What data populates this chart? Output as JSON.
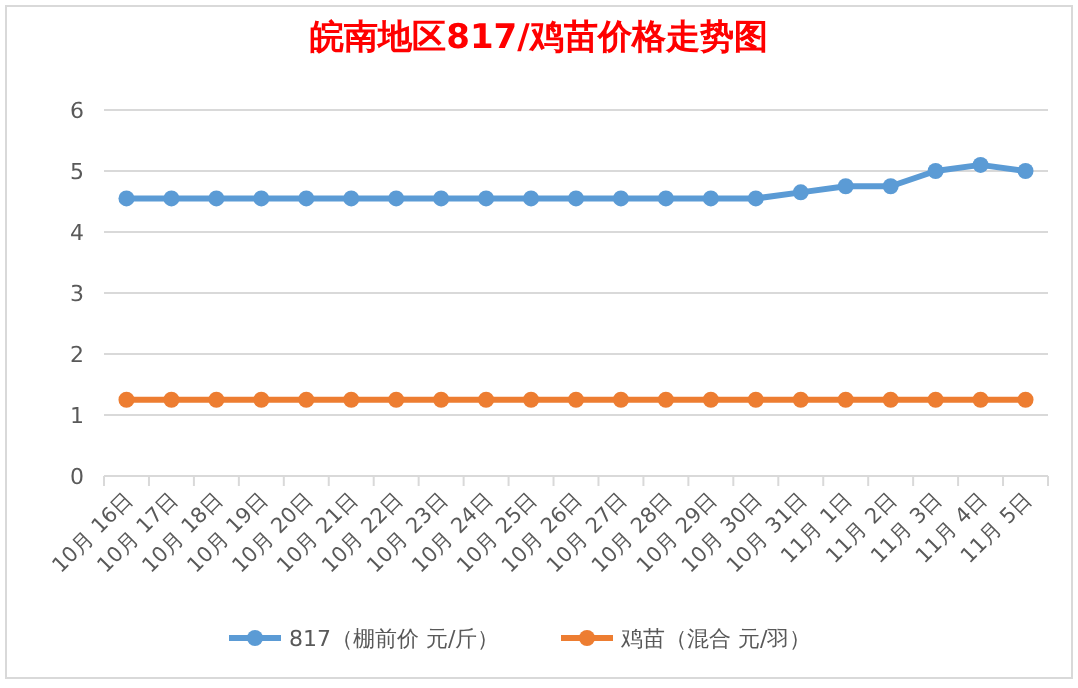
{
  "chart_data": {
    "type": "line",
    "title": "皖南地区817/鸡苗价格走势图",
    "categories": [
      "10月 16日",
      "10月 17日",
      "10月 18日",
      "10月 19日",
      "10月 20日",
      "10月 21日",
      "10月 22日",
      "10月 23日",
      "10月 24日",
      "10月 25日",
      "10月 26日",
      "10月 27日",
      "10月 28日",
      "10月 29日",
      "10月 30日",
      "10月 31日",
      "11月 1日",
      "11月 2日",
      "11月 3日",
      "11月 4日",
      "11月 5日"
    ],
    "series": [
      {
        "name": "817（棚前价 元/斤）",
        "color": "#5b9bd5",
        "values": [
          4.55,
          4.55,
          4.55,
          4.55,
          4.55,
          4.55,
          4.55,
          4.55,
          4.55,
          4.55,
          4.55,
          4.55,
          4.55,
          4.55,
          4.55,
          4.65,
          4.75,
          4.75,
          5.0,
          5.1,
          5.0
        ]
      },
      {
        "name": "鸡苗（混合 元/羽）",
        "color": "#ed7d31",
        "values": [
          1.25,
          1.25,
          1.25,
          1.25,
          1.25,
          1.25,
          1.25,
          1.25,
          1.25,
          1.25,
          1.25,
          1.25,
          1.25,
          1.25,
          1.25,
          1.25,
          1.25,
          1.25,
          1.25,
          1.25,
          1.25
        ]
      }
    ],
    "ylim": [
      0,
      6
    ],
    "yticks": [
      0,
      1,
      2,
      3,
      4,
      5,
      6
    ],
    "grid": "y",
    "legend": "bottom",
    "marker": "circle",
    "line_style": "solid"
  }
}
